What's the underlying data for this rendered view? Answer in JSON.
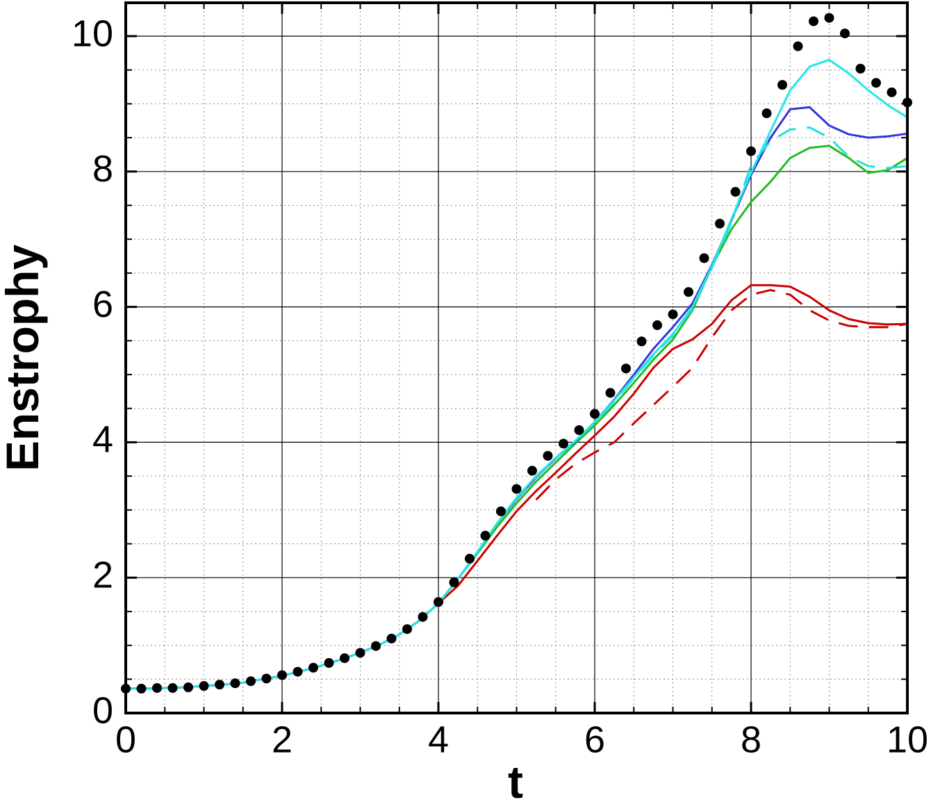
{
  "chart_data": {
    "type": "line",
    "xlabel": "t",
    "ylabel": "Enstrophy",
    "xlim": [
      0,
      10
    ],
    "ylim": [
      0,
      10
    ],
    "xticks": [
      0,
      2,
      4,
      6,
      8,
      10
    ],
    "yticks": [
      0,
      2,
      4,
      6,
      8,
      10
    ],
    "xminorticks": [
      0.5,
      1,
      1.5,
      2.5,
      3,
      3.5,
      4.5,
      5,
      5.5,
      6.5,
      7,
      7.5,
      8.5,
      9,
      9.5
    ],
    "yminorticks": [
      0.5,
      1,
      1.5,
      2.5,
      3,
      3.5,
      4.5,
      5,
      5.5,
      6.5,
      7,
      7.5,
      8.5,
      9,
      9.5
    ],
    "grid": true,
    "series": [
      {
        "color": "#cc0000",
        "dash": true,
        "x": [
          0,
          0.25,
          0.5,
          0.75,
          1,
          1.25,
          1.5,
          1.75,
          2,
          2.25,
          2.5,
          2.75,
          3,
          3.25,
          3.5,
          3.75,
          4,
          4.25,
          4.5,
          4.75,
          5,
          5.25,
          5.5,
          5.75,
          6,
          6.25,
          6.5,
          6.75,
          7,
          7.25,
          7.5,
          7.75,
          8,
          8.25,
          8.5,
          8.75,
          9,
          9.25,
          9.5,
          9.75,
          10
        ],
        "values": [
          null,
          null,
          null,
          null,
          null,
          null,
          null,
          null,
          null,
          null,
          null,
          null,
          null,
          null,
          null,
          null,
          null,
          null,
          null,
          null,
          null,
          3.15,
          3.45,
          3.68,
          3.85,
          4.0,
          4.28,
          4.55,
          4.82,
          5.1,
          5.55,
          5.95,
          6.18,
          6.25,
          6.18,
          5.95,
          5.8,
          5.72,
          5.7,
          5.7,
          5.75
        ]
      },
      {
        "color": "#cc0000",
        "dash": false,
        "x": [
          0,
          0.25,
          0.5,
          0.75,
          1,
          1.25,
          1.5,
          1.75,
          2,
          2.25,
          2.5,
          2.75,
          3,
          3.25,
          3.5,
          3.75,
          4,
          4.25,
          4.5,
          4.75,
          5,
          5.25,
          5.5,
          5.75,
          6,
          6.25,
          6.5,
          6.75,
          7,
          7.25,
          7.5,
          7.75,
          8,
          8.25,
          8.5,
          8.75,
          9,
          9.25,
          9.5,
          9.75,
          10
        ],
        "values": [
          0.36,
          0.36,
          0.37,
          0.38,
          0.4,
          0.42,
          0.45,
          0.5,
          0.55,
          0.62,
          0.7,
          0.79,
          0.89,
          1.01,
          1.16,
          1.36,
          1.62,
          1.88,
          2.25,
          2.62,
          2.98,
          3.28,
          3.55,
          3.83,
          4.1,
          4.38,
          4.72,
          5.1,
          5.38,
          5.52,
          5.75,
          6.1,
          6.32,
          6.32,
          6.3,
          6.15,
          5.95,
          5.82,
          5.76,
          5.74,
          5.75
        ]
      },
      {
        "color": "#22bb22",
        "dash": false,
        "x": [
          0,
          0.25,
          0.5,
          0.75,
          1,
          1.25,
          1.5,
          1.75,
          2,
          2.25,
          2.5,
          2.75,
          3,
          3.25,
          3.5,
          3.75,
          4,
          4.25,
          4.5,
          4.75,
          5,
          5.25,
          5.5,
          5.75,
          6,
          6.25,
          6.5,
          6.75,
          7,
          7.25,
          7.5,
          7.75,
          8,
          8.25,
          8.5,
          8.75,
          9,
          9.25,
          9.5,
          9.75,
          10
        ],
        "values": [
          0.36,
          0.36,
          0.37,
          0.38,
          0.4,
          0.42,
          0.45,
          0.5,
          0.55,
          0.62,
          0.7,
          0.79,
          0.89,
          1.01,
          1.16,
          1.36,
          1.62,
          1.98,
          2.36,
          2.75,
          3.1,
          3.42,
          3.7,
          3.98,
          4.25,
          4.55,
          4.88,
          5.22,
          5.52,
          5.95,
          6.6,
          7.15,
          7.55,
          7.85,
          8.2,
          8.35,
          8.38,
          8.2,
          7.98,
          8.02,
          8.2
        ]
      },
      {
        "color": "#3333dd",
        "dash": false,
        "x": [
          0,
          0.25,
          0.5,
          0.75,
          1,
          1.25,
          1.5,
          1.75,
          2,
          2.25,
          2.5,
          2.75,
          3,
          3.25,
          3.5,
          3.75,
          4,
          4.25,
          4.5,
          4.75,
          5,
          5.25,
          5.5,
          5.75,
          6,
          6.25,
          6.5,
          6.75,
          7,
          7.25,
          7.5,
          7.75,
          8,
          8.25,
          8.5,
          8.75,
          9,
          9.25,
          9.5,
          9.75,
          10
        ],
        "values": [
          0.36,
          0.36,
          0.37,
          0.38,
          0.4,
          0.42,
          0.45,
          0.5,
          0.55,
          0.62,
          0.7,
          0.79,
          0.89,
          1.01,
          1.16,
          1.36,
          1.62,
          1.98,
          2.38,
          2.8,
          3.16,
          3.48,
          3.76,
          4.01,
          4.3,
          4.63,
          5.0,
          5.38,
          5.7,
          6.05,
          6.62,
          7.28,
          7.95,
          8.5,
          8.92,
          8.95,
          8.68,
          8.55,
          8.5,
          8.52,
          8.56
        ]
      },
      {
        "color": "#22e0e0",
        "dash": true,
        "x": [
          0,
          0.25,
          0.5,
          0.75,
          1,
          1.25,
          1.5,
          1.75,
          2,
          2.25,
          2.5,
          2.75,
          3,
          3.25,
          3.5,
          3.75,
          4,
          4.25,
          4.5,
          4.75,
          5,
          5.25,
          5.5,
          5.75,
          6,
          6.25,
          6.5,
          6.75,
          7,
          7.25,
          7.5,
          7.75,
          8,
          8.25,
          8.5,
          8.75,
          9,
          9.25,
          9.5,
          9.75,
          10
        ],
        "values": [
          0.36,
          0.36,
          0.37,
          0.38,
          0.4,
          0.42,
          0.45,
          0.5,
          0.55,
          0.62,
          0.7,
          0.79,
          0.89,
          1.01,
          1.16,
          1.36,
          1.62,
          1.98,
          2.38,
          2.8,
          3.17,
          3.49,
          3.76,
          4.01,
          4.29,
          4.6,
          4.95,
          5.28,
          5.58,
          5.98,
          6.58,
          7.25,
          8.1,
          8.45,
          8.62,
          8.65,
          8.5,
          8.22,
          8.08,
          8.05,
          8.08
        ]
      },
      {
        "color": "#22e6e6",
        "dash": false,
        "x": [
          0,
          0.25,
          0.5,
          0.75,
          1,
          1.25,
          1.5,
          1.75,
          2,
          2.25,
          2.5,
          2.75,
          3,
          3.25,
          3.5,
          3.75,
          4,
          4.25,
          4.5,
          4.75,
          5,
          5.25,
          5.5,
          5.75,
          6,
          6.25,
          6.5,
          6.75,
          7,
          7.25,
          7.5,
          7.75,
          8,
          8.25,
          8.5,
          8.75,
          9,
          9.25,
          9.5,
          9.75,
          10
        ],
        "values": [
          0.36,
          0.36,
          0.37,
          0.38,
          0.4,
          0.42,
          0.45,
          0.5,
          0.55,
          0.62,
          0.7,
          0.79,
          0.89,
          1.01,
          1.16,
          1.36,
          1.62,
          1.98,
          2.38,
          2.8,
          3.18,
          3.5,
          3.77,
          4.02,
          4.3,
          4.62,
          4.96,
          5.3,
          5.6,
          6.0,
          6.6,
          7.3,
          7.98,
          8.6,
          9.2,
          9.55,
          9.65,
          9.45,
          9.2,
          8.98,
          8.8
        ]
      },
      {
        "color": "#000000",
        "marker": "circle",
        "x": [
          0,
          0.2,
          0.4,
          0.6,
          0.8,
          1,
          1.2,
          1.4,
          1.6,
          1.8,
          2,
          2.2,
          2.4,
          2.6,
          2.8,
          3,
          3.2,
          3.4,
          3.6,
          3.8,
          4,
          4.2,
          4.4,
          4.6,
          4.8,
          5,
          5.2,
          5.4,
          5.6,
          5.8,
          6,
          6.2,
          6.4,
          6.6,
          6.8,
          7,
          7.2,
          7.4,
          7.6,
          7.8,
          8,
          8.2,
          8.4,
          8.6,
          8.8,
          9,
          9.2,
          9.4,
          9.6,
          9.8,
          10
        ],
        "values": [
          0.36,
          0.36,
          0.37,
          0.37,
          0.38,
          0.4,
          0.42,
          0.44,
          0.47,
          0.51,
          0.56,
          0.61,
          0.67,
          0.74,
          0.81,
          0.89,
          0.99,
          1.1,
          1.24,
          1.42,
          1.64,
          1.93,
          2.28,
          2.62,
          2.98,
          3.31,
          3.58,
          3.8,
          3.98,
          4.18,
          4.42,
          4.73,
          5.09,
          5.49,
          5.73,
          5.89,
          6.22,
          6.72,
          7.23,
          7.7,
          8.3,
          8.86,
          9.28,
          9.85,
          10.22,
          10.27,
          10.04,
          9.52,
          9.31,
          9.17,
          9.02
        ]
      }
    ]
  }
}
